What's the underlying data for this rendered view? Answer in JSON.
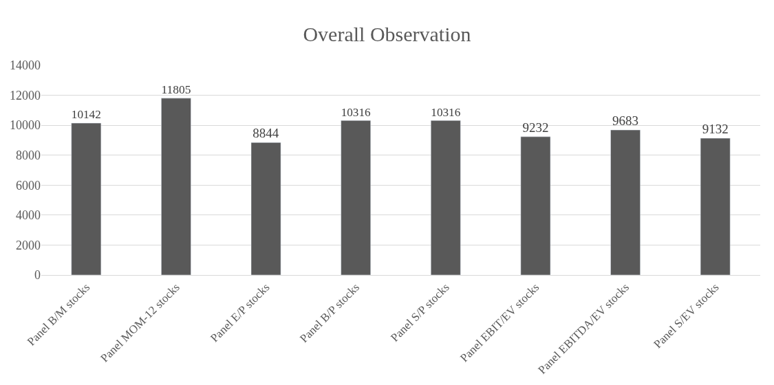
{
  "chart_data": {
    "type": "bar",
    "title": "Overall Observation",
    "categories": [
      "Panel B/M stocks",
      "Panel MOM-12 stocks",
      "Panel E/P stocks",
      "Panel B/P stocks",
      "Panel S/P stocks",
      "Panel EBIT/EV stocks",
      "Panel EBITDA/EV stocks",
      "Panel S/EV stocks"
    ],
    "values": [
      10142,
      11805,
      8844,
      10316,
      10316,
      9232,
      9683,
      9132
    ],
    "color": "#595959",
    "ylim": [
      0,
      14000
    ],
    "yticks": [
      0,
      2000,
      4000,
      6000,
      8000,
      10000,
      12000,
      14000
    ],
    "grid": "y",
    "data_labels": true
  }
}
